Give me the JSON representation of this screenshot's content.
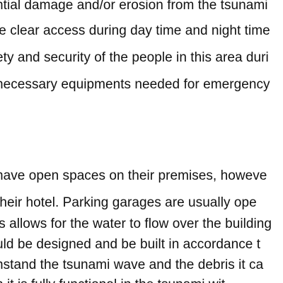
{
  "document": {
    "block1": [
      "ntial damage and/or erosion from the tsunami",
      "le clear access during day time and night time",
      "ety and security of the people in this area duri",
      "necessary equipments needed for emergency"
    ],
    "block2": [
      "have open spaces on their premises, howeve",
      " their hotel. Parking garages are usually ope",
      "is allows for the water to flow over the building",
      "uld be designed and be built in accordance t",
      "hstand the tsunami wave and the debris it ca",
      "n it is fully functional in the tsunami wit"
    ]
  }
}
